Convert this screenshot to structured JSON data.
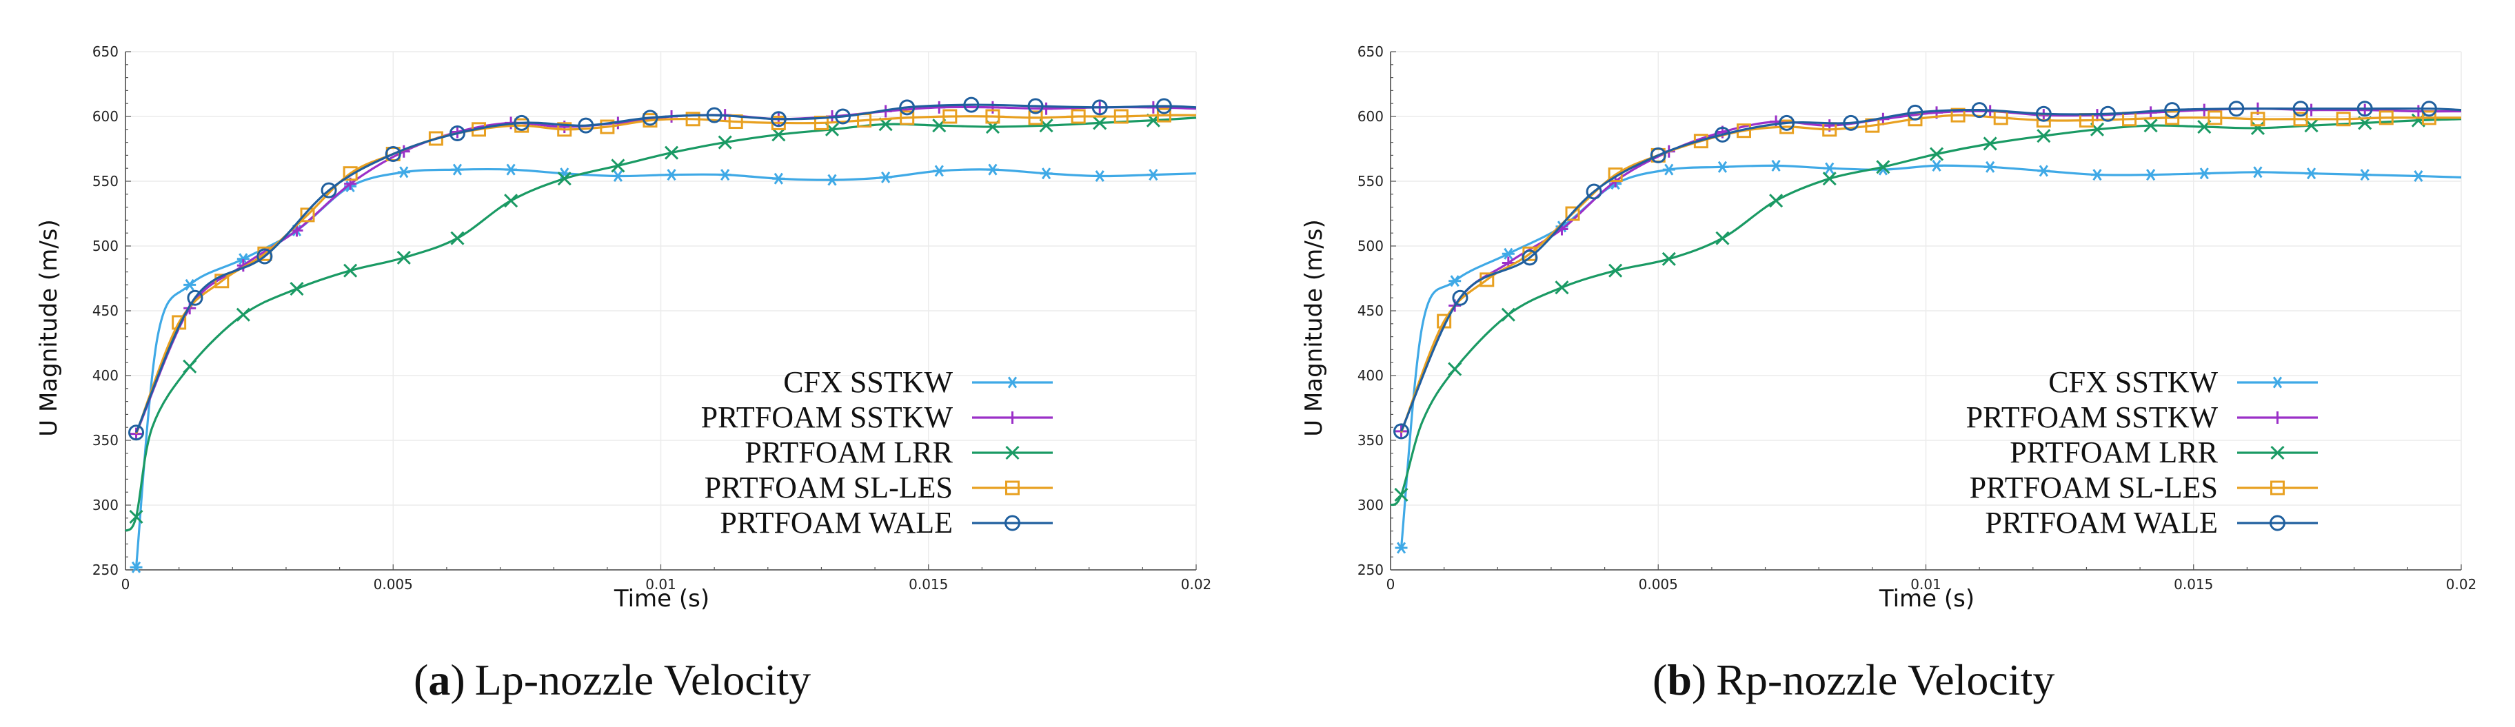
{
  "figure": {
    "panels": [
      {
        "tag_open": "(",
        "tag_letter": "a",
        "tag_close": ")",
        "caption": "Lp-nozzle Velocity"
      },
      {
        "tag_open": "(",
        "tag_letter": "b",
        "tag_close": ")",
        "caption": "Rp-nozzle Velocity"
      }
    ]
  },
  "colors": {
    "CFX SSTKW": "#3fa9e6",
    "PRTFOAM SSTKW": "#9b30c8",
    "PRTFOAM LRR": "#1a9a64",
    "PRTFOAM SL-LES": "#e8a020",
    "PRTFOAM WALE": "#1f5f9e"
  },
  "markers": {
    "CFX SSTKW": "asterisk",
    "PRTFOAM SSTKW": "plus",
    "PRTFOAM LRR": "x",
    "PRTFOAM SL-LES": "square",
    "PRTFOAM WALE": "circle"
  },
  "chart_data": [
    {
      "type": "line",
      "title": "",
      "xlabel": "Time (s)",
      "ylabel": "U Magnitude (m/s)",
      "xlim": [
        0,
        0.02
      ],
      "ylim": [
        250,
        650
      ],
      "xticks": [
        0,
        0.005,
        0.01,
        0.015,
        0.02
      ],
      "xtick_labels": [
        "0",
        "0.005",
        "0.01",
        "0.015",
        "0.02"
      ],
      "yticks": [
        250,
        300,
        350,
        400,
        450,
        500,
        550,
        600,
        650
      ],
      "ytick_labels": [
        "250",
        "300",
        "350",
        "400",
        "450",
        "500",
        "550",
        "600",
        "650"
      ],
      "legend_position": "bottom-right",
      "series": [
        {
          "name": "CFX SSTKW",
          "x": [
            0.0002,
            0.0006,
            0.0012,
            0.0022,
            0.0032,
            0.0042,
            0.0052,
            0.0062,
            0.0072,
            0.0082,
            0.0092,
            0.0102,
            0.0112,
            0.0122,
            0.0132,
            0.0142,
            0.0152,
            0.0162,
            0.0172,
            0.0182,
            0.0192,
            0.02
          ],
          "y": [
            252,
            430,
            470,
            490,
            512,
            546,
            557,
            559,
            559,
            556,
            554,
            555,
            555,
            552,
            551,
            553,
            558,
            559,
            556,
            554,
            555,
            556
          ],
          "marker_x": [
            0.0002,
            0.0012,
            0.0022,
            0.0032,
            0.0042,
            0.0052,
            0.0062,
            0.0072,
            0.0082,
            0.0092,
            0.0102,
            0.0112,
            0.0122,
            0.0132,
            0.0142,
            0.0152,
            0.0162,
            0.0172,
            0.0182,
            0.0192
          ]
        },
        {
          "name": "PRTFOAM SSTKW",
          "x": [
            0.0002,
            0.0012,
            0.0022,
            0.0032,
            0.0042,
            0.0052,
            0.0062,
            0.0072,
            0.0082,
            0.0092,
            0.0102,
            0.0112,
            0.0122,
            0.0132,
            0.0142,
            0.0152,
            0.0162,
            0.0172,
            0.0182,
            0.0192,
            0.02
          ],
          "y": [
            355,
            452,
            485,
            512,
            548,
            573,
            588,
            595,
            592,
            595,
            600,
            601,
            598,
            600,
            604,
            607,
            607,
            606,
            607,
            607,
            606
          ],
          "marker_x": [
            0.0002,
            0.0012,
            0.0022,
            0.0032,
            0.0042,
            0.0052,
            0.0062,
            0.0072,
            0.0082,
            0.0092,
            0.0102,
            0.0112,
            0.0122,
            0.0132,
            0.0142,
            0.0152,
            0.0162,
            0.0172,
            0.0182,
            0.0192
          ]
        },
        {
          "name": "PRTFOAM LRR",
          "x": [
            0,
            0.0002,
            0.0005,
            0.0012,
            0.0022,
            0.0032,
            0.0042,
            0.0052,
            0.0062,
            0.0072,
            0.0082,
            0.0092,
            0.0102,
            0.0112,
            0.0122,
            0.0132,
            0.0142,
            0.0152,
            0.0162,
            0.0172,
            0.0182,
            0.0192,
            0.02
          ],
          "y": [
            280,
            291,
            360,
            407,
            447,
            467,
            481,
            491,
            506,
            535,
            552,
            562,
            572,
            580,
            586,
            590,
            594,
            593,
            592,
            593,
            595,
            597,
            599
          ],
          "marker_x": [
            0.0002,
            0.0012,
            0.0022,
            0.0032,
            0.0042,
            0.0052,
            0.0062,
            0.0072,
            0.0082,
            0.0092,
            0.0102,
            0.0112,
            0.0122,
            0.0132,
            0.0142,
            0.0152,
            0.0162,
            0.0172,
            0.0182,
            0.0192
          ]
        },
        {
          "name": "PRTFOAM SL-LES",
          "x": [
            0.0002,
            0.001,
            0.0018,
            0.0026,
            0.0034,
            0.0042,
            0.005,
            0.0058,
            0.0066,
            0.0074,
            0.0082,
            0.009,
            0.0098,
            0.0106,
            0.0114,
            0.0122,
            0.013,
            0.0138,
            0.0146,
            0.0154,
            0.0162,
            0.017,
            0.0178,
            0.0186,
            0.0194,
            0.02
          ],
          "y": [
            355,
            441,
            473,
            494,
            524,
            556,
            571,
            583,
            590,
            593,
            590,
            592,
            597,
            598,
            596,
            595,
            595,
            597,
            599,
            600,
            600,
            599,
            600,
            600,
            601,
            601
          ],
          "marker_x": [
            0.001,
            0.0018,
            0.0026,
            0.0034,
            0.0042,
            0.005,
            0.0058,
            0.0066,
            0.0074,
            0.0082,
            0.009,
            0.0098,
            0.0106,
            0.0114,
            0.0122,
            0.013,
            0.0138,
            0.0146,
            0.0154,
            0.0162,
            0.017,
            0.0178,
            0.0186,
            0.0194
          ]
        },
        {
          "name": "PRTFOAM WALE",
          "x": [
            0.0002,
            0.0013,
            0.0026,
            0.0038,
            0.005,
            0.0062,
            0.0074,
            0.0086,
            0.0098,
            0.011,
            0.0122,
            0.0134,
            0.0146,
            0.0158,
            0.017,
            0.0182,
            0.0194,
            0.02
          ],
          "y": [
            356,
            460,
            492,
            543,
            571,
            587,
            595,
            593,
            599,
            601,
            598,
            600,
            607,
            609,
            608,
            607,
            608,
            607
          ],
          "marker_x": [
            0.0002,
            0.0013,
            0.0026,
            0.0038,
            0.005,
            0.0062,
            0.0074,
            0.0086,
            0.0098,
            0.011,
            0.0122,
            0.0134,
            0.0146,
            0.0158,
            0.017,
            0.0182,
            0.0194
          ]
        }
      ]
    },
    {
      "type": "line",
      "title": "",
      "xlabel": "Time (s)",
      "ylabel": "U Magnitude (m/s)",
      "xlim": [
        0,
        0.02
      ],
      "ylim": [
        250,
        650
      ],
      "xticks": [
        0,
        0.005,
        0.01,
        0.015,
        0.02
      ],
      "xtick_labels": [
        "0",
        "0.005",
        "0.01",
        "0.015",
        "0.02"
      ],
      "yticks": [
        250,
        300,
        350,
        400,
        450,
        500,
        550,
        600,
        650
      ],
      "ytick_labels": [
        "250",
        "300",
        "350",
        "400",
        "450",
        "500",
        "550",
        "600",
        "650"
      ],
      "legend_position": "bottom-right",
      "series": [
        {
          "name": "CFX SSTKW",
          "x": [
            0.0002,
            0.0006,
            0.0012,
            0.0022,
            0.0032,
            0.0042,
            0.0052,
            0.0062,
            0.0072,
            0.0082,
            0.0092,
            0.0102,
            0.0112,
            0.0122,
            0.0132,
            0.0142,
            0.0152,
            0.0162,
            0.0172,
            0.0182,
            0.0192,
            0.02
          ],
          "y": [
            267,
            440,
            473,
            494,
            515,
            548,
            559,
            561,
            562,
            560,
            559,
            562,
            561,
            558,
            555,
            555,
            556,
            557,
            556,
            555,
            554,
            553
          ],
          "marker_x": [
            0.0002,
            0.0012,
            0.0022,
            0.0032,
            0.0042,
            0.0052,
            0.0062,
            0.0072,
            0.0082,
            0.0092,
            0.0102,
            0.0112,
            0.0122,
            0.0132,
            0.0142,
            0.0152,
            0.0162,
            0.0172,
            0.0182,
            0.0192
          ]
        },
        {
          "name": "PRTFOAM SSTKW",
          "x": [
            0.0002,
            0.0012,
            0.0022,
            0.0032,
            0.0042,
            0.0052,
            0.0062,
            0.0072,
            0.0082,
            0.0092,
            0.0102,
            0.0112,
            0.0122,
            0.0132,
            0.0142,
            0.0152,
            0.0162,
            0.0172,
            0.0182,
            0.0192,
            0.02
          ],
          "y": [
            357,
            454,
            487,
            513,
            550,
            573,
            588,
            596,
            593,
            598,
            603,
            604,
            601,
            601,
            603,
            605,
            606,
            605,
            605,
            604,
            604
          ],
          "marker_x": [
            0.0002,
            0.0012,
            0.0022,
            0.0032,
            0.0042,
            0.0052,
            0.0062,
            0.0072,
            0.0082,
            0.0092,
            0.0102,
            0.0112,
            0.0122,
            0.0132,
            0.0142,
            0.0152,
            0.0162,
            0.0172,
            0.0182,
            0.0192
          ]
        },
        {
          "name": "PRTFOAM LRR",
          "x": [
            0,
            0.0002,
            0.0006,
            0.0012,
            0.0022,
            0.0032,
            0.0042,
            0.0052,
            0.0062,
            0.0072,
            0.0082,
            0.0092,
            0.0102,
            0.0112,
            0.0122,
            0.0132,
            0.0142,
            0.0152,
            0.0162,
            0.0172,
            0.0182,
            0.0192,
            0.02
          ],
          "y": [
            300,
            308,
            365,
            405,
            447,
            468,
            481,
            490,
            506,
            535,
            552,
            561,
            571,
            579,
            585,
            590,
            593,
            592,
            591,
            593,
            595,
            597,
            598
          ],
          "marker_x": [
            0.0002,
            0.0012,
            0.0022,
            0.0032,
            0.0042,
            0.0052,
            0.0062,
            0.0072,
            0.0082,
            0.0092,
            0.0102,
            0.0112,
            0.0122,
            0.0132,
            0.0142,
            0.0152,
            0.0162,
            0.0172,
            0.0182,
            0.0192
          ]
        },
        {
          "name": "PRTFOAM SL-LES",
          "x": [
            0.0002,
            0.001,
            0.0018,
            0.0026,
            0.0034,
            0.0042,
            0.005,
            0.0058,
            0.0066,
            0.0074,
            0.0082,
            0.009,
            0.0098,
            0.0106,
            0.0114,
            0.0122,
            0.013,
            0.0138,
            0.0146,
            0.0154,
            0.0162,
            0.017,
            0.0178,
            0.0186,
            0.0194,
            0.02
          ],
          "y": [
            356,
            442,
            474,
            494,
            525,
            555,
            570,
            581,
            589,
            592,
            590,
            593,
            598,
            601,
            599,
            597,
            597,
            598,
            599,
            599,
            598,
            598,
            598,
            599,
            599,
            599
          ],
          "marker_x": [
            0.001,
            0.0018,
            0.0026,
            0.0034,
            0.0042,
            0.005,
            0.0058,
            0.0066,
            0.0074,
            0.0082,
            0.009,
            0.0098,
            0.0106,
            0.0114,
            0.0122,
            0.013,
            0.0138,
            0.0146,
            0.0154,
            0.0162,
            0.017,
            0.0178,
            0.0186,
            0.0194
          ]
        },
        {
          "name": "PRTFOAM WALE",
          "x": [
            0.0002,
            0.0013,
            0.0026,
            0.0038,
            0.005,
            0.0062,
            0.0074,
            0.0086,
            0.0098,
            0.011,
            0.0122,
            0.0134,
            0.0146,
            0.0158,
            0.017,
            0.0182,
            0.0194,
            0.02
          ],
          "y": [
            357,
            460,
            491,
            542,
            570,
            586,
            595,
            595,
            603,
            605,
            602,
            602,
            605,
            606,
            606,
            606,
            606,
            605
          ],
          "marker_x": [
            0.0002,
            0.0013,
            0.0026,
            0.0038,
            0.005,
            0.0062,
            0.0074,
            0.0086,
            0.0098,
            0.011,
            0.0122,
            0.0134,
            0.0146,
            0.0158,
            0.017,
            0.0182,
            0.0194
          ]
        }
      ]
    }
  ]
}
